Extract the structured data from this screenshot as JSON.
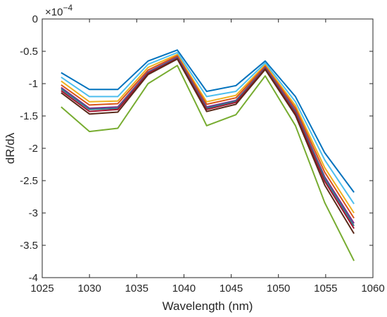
{
  "chart_data": {
    "type": "line",
    "title": "",
    "xlabel": "Wavelength (nm)",
    "ylabel": "dR/dλ",
    "y_multiplier_label": "×10",
    "y_multiplier_exp": "−4",
    "xlim": [
      1025,
      1060
    ],
    "ylim": [
      -4,
      0
    ],
    "xticks": [
      1025,
      1030,
      1035,
      1040,
      1045,
      1050,
      1055,
      1060
    ],
    "xtick_labels": [
      "1025",
      "1030",
      "1035",
      "1040",
      "1045",
      "1050",
      "1055",
      "1060"
    ],
    "yticks": [
      0,
      -0.5,
      -1,
      -1.5,
      -2,
      -2.5,
      -3,
      -3.5,
      -4
    ],
    "ytick_labels": [
      "0",
      "-0.5",
      "-1",
      "-1.5",
      "-2",
      "-2.5",
      "-3",
      "-3.5",
      "-4"
    ],
    "grid": false,
    "legend": "none",
    "x": [
      1027,
      1030,
      1033,
      1036.2,
      1039.3,
      1042.4,
      1045.5,
      1048.6,
      1051.8,
      1054.9,
      1058
    ],
    "series": [
      {
        "color": "#0072BD",
        "values": [
          -0.83,
          -1.09,
          -1.09,
          -0.65,
          -0.48,
          -1.12,
          -1.03,
          -0.65,
          -1.2,
          -2.07,
          -2.68
        ]
      },
      {
        "color": "#4DBEEE",
        "values": [
          -0.9,
          -1.2,
          -1.2,
          -0.7,
          -0.52,
          -1.2,
          -1.12,
          -0.68,
          -1.28,
          -2.18,
          -2.86
        ]
      },
      {
        "color": "#EDB120",
        "values": [
          -0.96,
          -1.28,
          -1.27,
          -0.75,
          -0.55,
          -1.28,
          -1.18,
          -0.71,
          -1.34,
          -2.3,
          -3.0
        ]
      },
      {
        "color": "#D95319",
        "values": [
          -1.02,
          -1.33,
          -1.31,
          -0.79,
          -0.57,
          -1.32,
          -1.22,
          -0.73,
          -1.38,
          -2.37,
          -3.08
        ]
      },
      {
        "color": "#7E2F8E",
        "values": [
          -1.06,
          -1.38,
          -1.36,
          -0.82,
          -0.59,
          -1.36,
          -1.26,
          -0.75,
          -1.42,
          -2.44,
          -3.16
        ]
      },
      {
        "color": "#2E7D8C",
        "values": [
          -1.08,
          -1.4,
          -1.38,
          -0.83,
          -0.6,
          -1.38,
          -1.27,
          -0.76,
          -1.44,
          -2.47,
          -3.2
        ]
      },
      {
        "color": "#A2142F",
        "values": [
          -1.11,
          -1.43,
          -1.4,
          -0.84,
          -0.61,
          -1.4,
          -1.29,
          -0.77,
          -1.46,
          -2.51,
          -3.24
        ]
      },
      {
        "color": "#5A2A1A",
        "values": [
          -1.14,
          -1.47,
          -1.44,
          -0.86,
          -0.62,
          -1.43,
          -1.32,
          -0.78,
          -1.49,
          -2.57,
          -3.32
        ]
      },
      {
        "color": "#77AC30",
        "values": [
          -1.36,
          -1.74,
          -1.69,
          -1.0,
          -0.72,
          -1.65,
          -1.48,
          -0.88,
          -1.65,
          -2.84,
          -3.74
        ]
      }
    ]
  }
}
